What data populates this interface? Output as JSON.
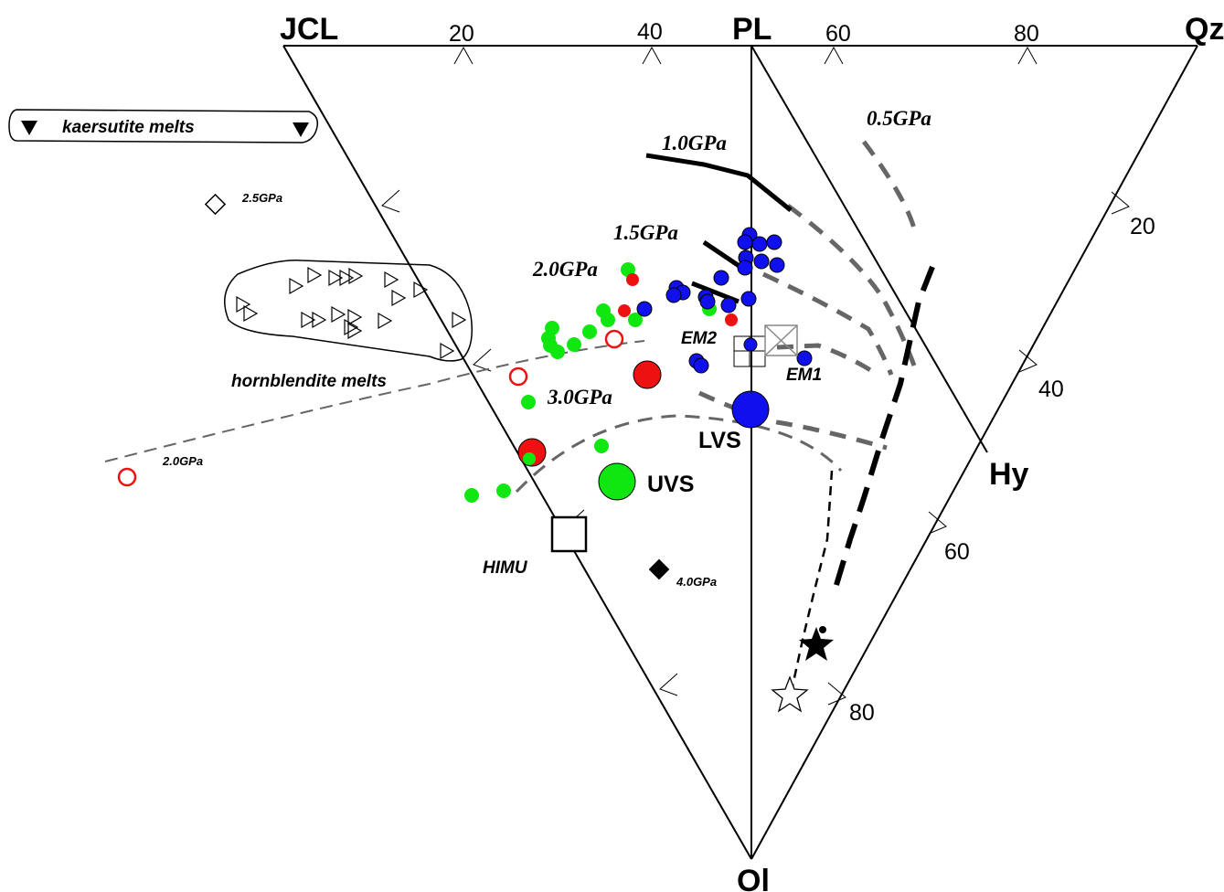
{
  "vertices": {
    "jcl": "JCL",
    "pl": "PL",
    "qz": "Qz",
    "ol": "Ol",
    "hy": "Hy"
  },
  "ticks": {
    "top_20": "20",
    "top_40": "40",
    "top_60": "60",
    "top_80": "80",
    "right_20": "20",
    "right_40": "40",
    "right_60": "60",
    "right_80": "80"
  },
  "pressure_labels": {
    "p_0_5": "0.5GPa",
    "p_1_0": "1.0GPa",
    "p_1_5": "1.5GPa",
    "p_2_0": "2.0GPa",
    "p_3_0": "3.0GPa"
  },
  "groups": {
    "kaersutite": "kaersutite melts",
    "hornblendite": "hornblendite melts"
  },
  "point_labels": {
    "diamond_open": "2.5GPa",
    "diamond_filled": "4.0GPa",
    "red_open": "2.0GPa",
    "em1": "EM1",
    "em2": "EM2",
    "himu": "HIMU",
    "lvs": "LVS",
    "uvs": "UVS"
  },
  "colors": {
    "green": "#10e610",
    "red": "#ee1111",
    "blue": "#1010ee",
    "gray_dash": "#666666"
  }
}
